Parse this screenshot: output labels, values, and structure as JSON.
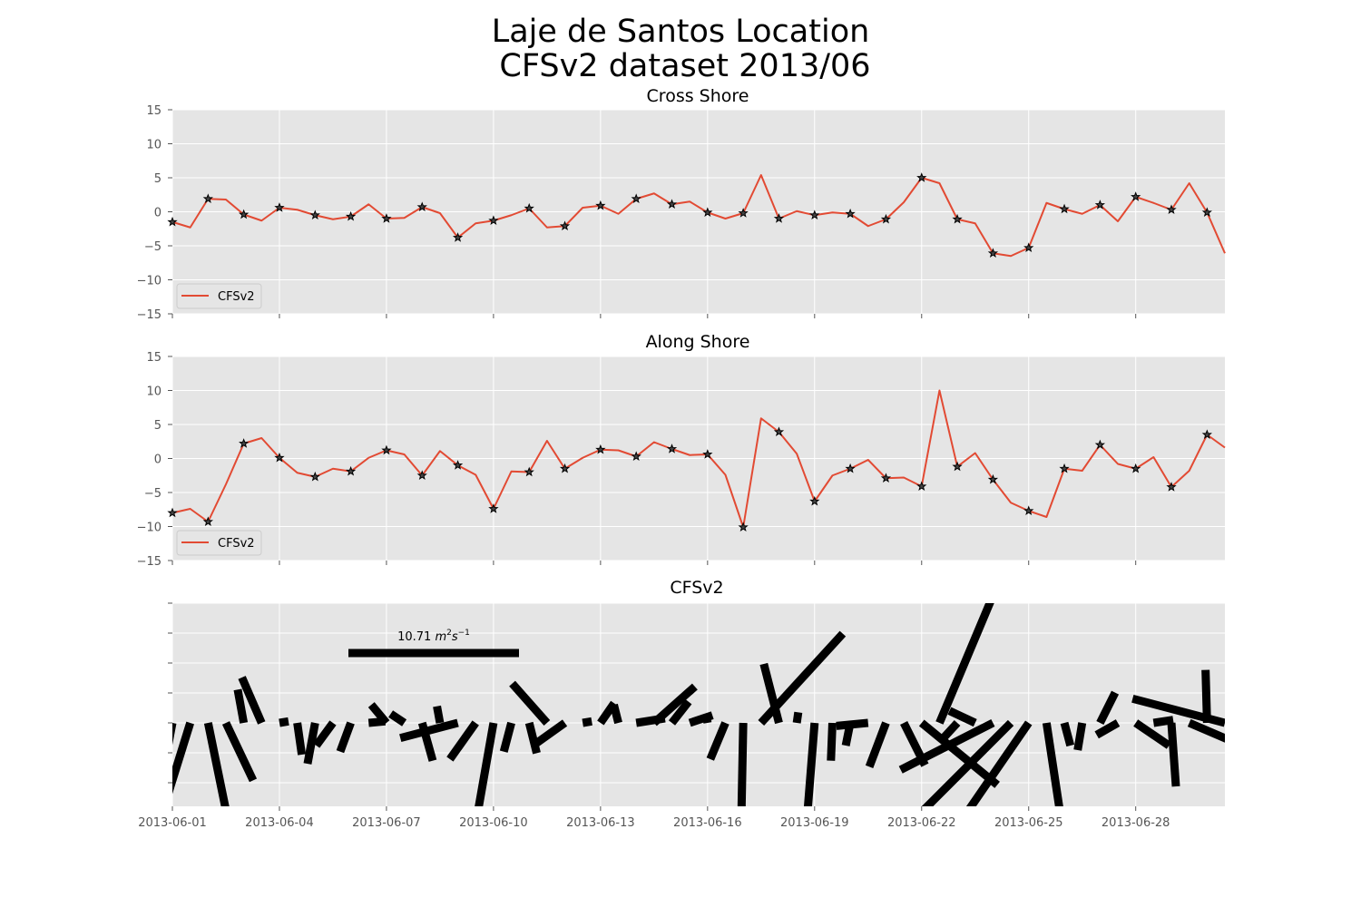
{
  "figure": {
    "title_line1": "Laje de Santos Location",
    "title_line2": "CFSv2 dataset 2013/06"
  },
  "colors": {
    "background": "#ffffff",
    "axes_face": "#e5e5e5",
    "grid": "#ffffff",
    "line": "#e24a33",
    "marker": "#000000",
    "tick_text": "#555555",
    "vectors": "#000000"
  },
  "chart_data": [
    {
      "type": "line",
      "title": "Cross Shore",
      "xlabel": "",
      "ylabel": "",
      "x_ticks": [
        "2013-06-01",
        "2013-06-04",
        "2013-06-07",
        "2013-06-10",
        "2013-06-13",
        "2013-06-16",
        "2013-06-19",
        "2013-06-22",
        "2013-06-25",
        "2013-06-28"
      ],
      "x_range": [
        0,
        29.5
      ],
      "ylim": [
        -15,
        15
      ],
      "y_ticks": [
        15,
        10,
        5,
        0,
        -5,
        -10,
        -15
      ],
      "grid": true,
      "legend": {
        "location": "lower-left",
        "entries": [
          "CFSv2"
        ]
      },
      "marker_every": 2,
      "series": [
        {
          "name": "CFSv2",
          "x_step_days": 0.5,
          "values": [
            -1.5,
            -2.3,
            1.9,
            1.8,
            -0.4,
            -1.3,
            0.6,
            0.3,
            -0.5,
            -1.1,
            -0.7,
            1.1,
            -1.0,
            -0.9,
            0.7,
            -0.2,
            -3.8,
            -1.7,
            -1.3,
            -0.5,
            0.5,
            -2.3,
            -2.1,
            0.6,
            0.9,
            -0.3,
            1.9,
            2.7,
            1.1,
            1.5,
            -0.1,
            -1.0,
            -0.2,
            5.4,
            -1.0,
            0.1,
            -0.5,
            -0.1,
            -0.3,
            -2.1,
            -1.1,
            1.4,
            5.0,
            4.2,
            -1.1,
            -1.7,
            -6.1,
            -6.5,
            -5.3,
            1.3,
            0.4,
            -0.3,
            1.0,
            -1.4,
            2.2,
            1.3,
            0.3,
            4.2,
            -0.1,
            -6.1
          ]
        }
      ]
    },
    {
      "type": "line",
      "title": "Along Shore",
      "xlabel": "",
      "ylabel": "",
      "x_ticks": [
        "2013-06-01",
        "2013-06-04",
        "2013-06-07",
        "2013-06-10",
        "2013-06-13",
        "2013-06-16",
        "2013-06-19",
        "2013-06-22",
        "2013-06-25",
        "2013-06-28"
      ],
      "x_range": [
        0,
        29.5
      ],
      "ylim": [
        -15,
        15
      ],
      "y_ticks": [
        15,
        10,
        5,
        0,
        -5,
        -10,
        -15
      ],
      "grid": true,
      "legend": {
        "location": "lower-left",
        "entries": [
          "CFSv2"
        ]
      },
      "marker_every": 2,
      "series": [
        {
          "name": "CFSv2",
          "x_step_days": 0.5,
          "values": [
            -8.0,
            -7.4,
            -9.3,
            -3.8,
            2.2,
            3.0,
            0.1,
            -2.1,
            -2.7,
            -1.5,
            -1.9,
            0.1,
            1.2,
            0.6,
            -2.5,
            1.1,
            -1.0,
            -2.4,
            -7.4,
            -1.9,
            -2.0,
            2.6,
            -1.5,
            0.1,
            1.3,
            1.2,
            0.3,
            2.4,
            1.4,
            0.5,
            0.6,
            -2.4,
            -10.1,
            5.9,
            3.9,
            0.7,
            -6.3,
            -2.5,
            -1.5,
            -0.2,
            -2.9,
            -2.8,
            -4.1,
            10.0,
            -1.2,
            0.8,
            -3.1,
            -6.5,
            -7.7,
            -8.6,
            -1.5,
            -1.8,
            2.0,
            -0.8,
            -1.5,
            0.2,
            -4.2,
            -1.8,
            3.5,
            1.6
          ]
        }
      ]
    },
    {
      "type": "quiver",
      "title": "CFSv2",
      "xlabel": "",
      "ylabel": "",
      "x_ticks": [
        "2013-06-01",
        "2013-06-04",
        "2013-06-07",
        "2013-06-10",
        "2013-06-13",
        "2013-06-16",
        "2013-06-19",
        "2013-06-22",
        "2013-06-25",
        "2013-06-28"
      ],
      "x_range": [
        0,
        29.5
      ],
      "grid": true,
      "key": {
        "label": "10.71 m2s-1",
        "text": "10.71",
        "unit_base": "m",
        "unit_exp1": "2",
        "unit_mid": "s",
        "unit_exp2": "−1",
        "value": 10.71
      }
    }
  ]
}
